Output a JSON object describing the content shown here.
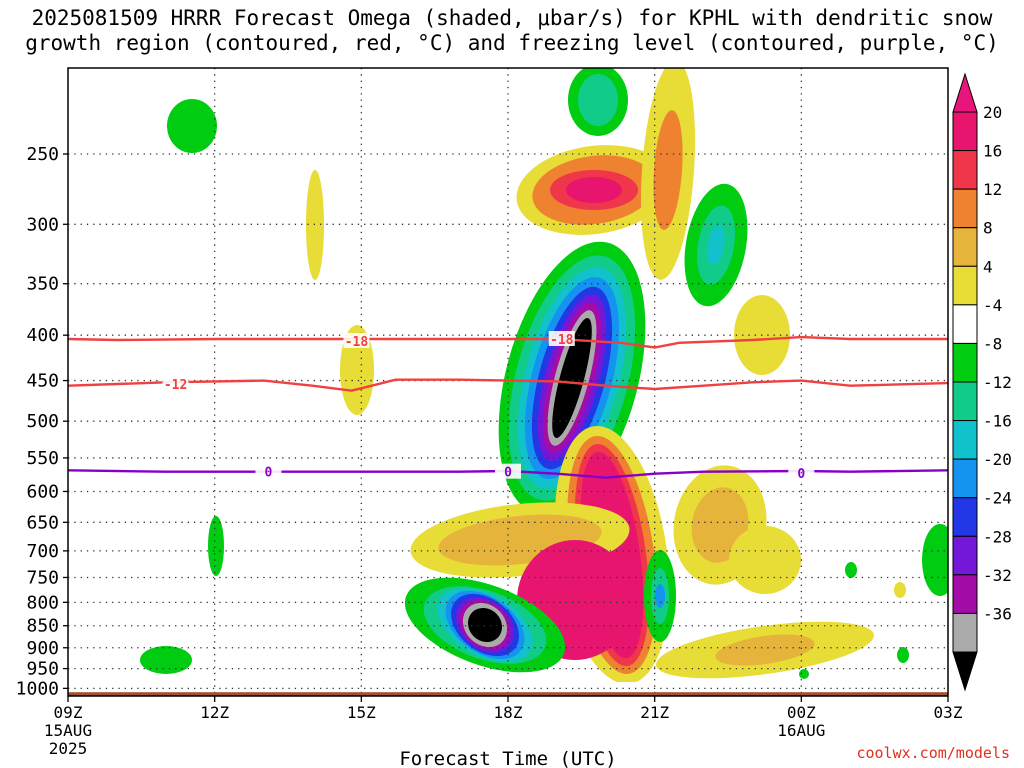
{
  "title_line1": "2025081509 HRRR Forecast Omega (shaded, μbar/s) for KPHL with dendritic snow",
  "title_line2": "growth region (contoured, red, °C) and freezing level (contoured, purple, °C)",
  "credit": "coolwx.com/models",
  "chart_data": {
    "type": "heatmap",
    "title": "2025081509 HRRR Forecast Omega (shaded, μbar/s) for KPHL with dendritic snow growth region (contoured, red, °C) and freezing level (contoured, purple, °C)",
    "xlabel": "Forecast Time (UTC)",
    "ylabel": "",
    "x_range_hours": [
      9,
      27
    ],
    "y_range": [
      1020,
      200
    ],
    "y_scale": "log",
    "x_ticks": [
      {
        "hour": 9,
        "label": "09Z",
        "sub": [
          "15AUG",
          "2025"
        ]
      },
      {
        "hour": 12,
        "label": "12Z",
        "sub": []
      },
      {
        "hour": 15,
        "label": "15Z",
        "sub": []
      },
      {
        "hour": 18,
        "label": "18Z",
        "sub": []
      },
      {
        "hour": 21,
        "label": "21Z",
        "sub": []
      },
      {
        "hour": 24,
        "label": "00Z",
        "sub": [
          "16AUG"
        ]
      },
      {
        "hour": 27,
        "label": "03Z",
        "sub": []
      }
    ],
    "y_ticks": [
      250,
      300,
      350,
      400,
      450,
      500,
      550,
      600,
      650,
      700,
      750,
      800,
      850,
      900,
      950,
      1000
    ],
    "grid": true,
    "ground_pressure": 1010,
    "colorbar": {
      "levels": [
        {
          "label": "20",
          "color": "#e8156f"
        },
        {
          "label": "16",
          "color": "#f0364a"
        },
        {
          "label": "12",
          "color": "#ee8230"
        },
        {
          "label": "8",
          "color": "#e6b43a"
        },
        {
          "label": "4",
          "color": "#e8dc36"
        },
        {
          "label": "-4",
          "color": "#ffffff"
        },
        {
          "label": "-8",
          "color": "#00cc11"
        },
        {
          "label": "-12",
          "color": "#11cc88"
        },
        {
          "label": "-16",
          "color": "#11c2cc"
        },
        {
          "label": "-20",
          "color": "#1494f0"
        },
        {
          "label": "-24",
          "color": "#2238e6"
        },
        {
          "label": "-28",
          "color": "#7318d8"
        },
        {
          "label": "-32",
          "color": "#a40ca8"
        },
        {
          "label": "-36",
          "color": "#aaaaaa"
        }
      ],
      "top_color": "#e8157c",
      "bottom_color": "#000000"
    },
    "contours": [
      {
        "name": "dendritic -18",
        "label": "-18",
        "color": "#f04040",
        "points": [
          [
            9,
            404
          ],
          [
            10,
            405
          ],
          [
            12,
            404
          ],
          [
            14,
            404
          ],
          [
            16,
            404
          ],
          [
            18,
            404
          ],
          [
            19,
            404
          ],
          [
            20.3,
            408
          ],
          [
            21,
            413
          ],
          [
            21.5,
            408
          ],
          [
            23,
            405
          ],
          [
            24,
            402
          ],
          [
            25,
            404
          ],
          [
            27,
            404
          ]
        ],
        "labels": [
          [
            14.9,
            406
          ],
          [
            19.1,
            404
          ]
        ]
      },
      {
        "name": "dendritic -12",
        "label": "-12",
        "color": "#f04040",
        "points": [
          [
            9,
            456
          ],
          [
            11,
            452
          ],
          [
            13,
            450
          ],
          [
            14,
            456
          ],
          [
            14.8,
            462
          ],
          [
            15.7,
            449
          ],
          [
            17,
            449
          ],
          [
            19,
            451
          ],
          [
            20,
            456
          ],
          [
            21,
            460
          ],
          [
            22,
            456
          ],
          [
            23,
            452
          ],
          [
            24,
            450
          ],
          [
            25,
            456
          ],
          [
            27,
            453
          ]
        ],
        "labels": [
          [
            11.2,
            454
          ]
        ]
      },
      {
        "name": "freezing level 0",
        "label": "0",
        "color": "#8800c8",
        "points": [
          [
            9,
            568
          ],
          [
            11,
            570
          ],
          [
            13,
            570
          ],
          [
            15,
            570
          ],
          [
            17,
            570
          ],
          [
            18,
            569
          ],
          [
            19,
            573
          ],
          [
            20,
            579
          ],
          [
            21,
            573
          ],
          [
            22,
            570
          ],
          [
            24,
            569
          ],
          [
            25,
            570
          ],
          [
            27,
            568
          ]
        ],
        "labels": [
          [
            13.1,
            570
          ],
          [
            18,
            570
          ],
          [
            24,
            572
          ]
        ]
      }
    ]
  }
}
